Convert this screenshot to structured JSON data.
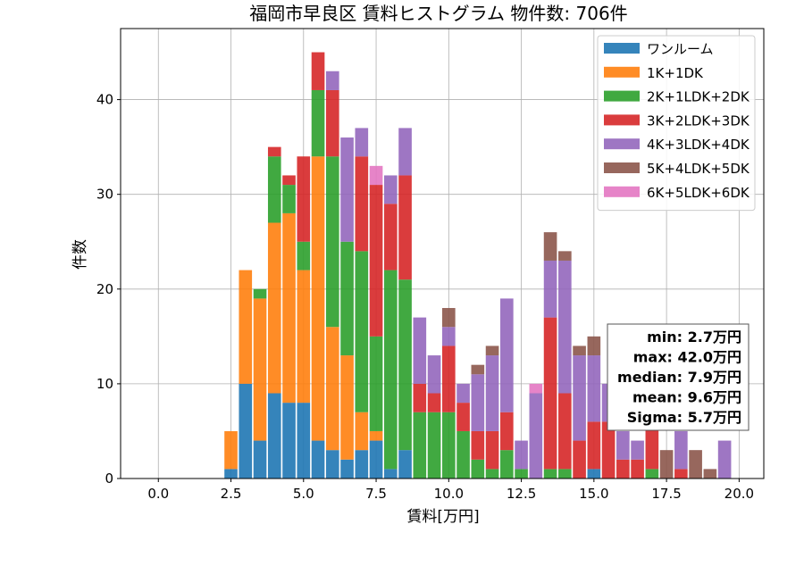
{
  "chart_data": {
    "type": "bar",
    "stacked": true,
    "title": "福岡市早良区 賃料ヒストグラム 物件数: 706件",
    "xlabel": "賃料[万円]",
    "ylabel": "件数",
    "xlim": [
      -1.3,
      20.85
    ],
    "ylim": [
      0,
      47.5
    ],
    "grid": true,
    "legend_position": "top-right",
    "bin_width": 0.5,
    "x": [
      2.5,
      3.0,
      3.5,
      4.0,
      4.5,
      5.0,
      5.5,
      6.0,
      6.5,
      7.0,
      7.5,
      8.0,
      8.5,
      9.0,
      9.5,
      10.0,
      10.5,
      11.0,
      11.5,
      12.0,
      12.5,
      13.0,
      13.5,
      14.0,
      14.5,
      15.0,
      15.5,
      16.0,
      16.5,
      17.0,
      17.5,
      18.0,
      18.5,
      19.0,
      19.5
    ],
    "xticks": [
      0.0,
      2.5,
      5.0,
      7.5,
      10.0,
      12.5,
      15.0,
      17.5,
      20.0
    ],
    "xtick_labels": [
      "0.0",
      "2.5",
      "5.0",
      "7.5",
      "10.0",
      "12.5",
      "15.0",
      "17.5",
      "20.0"
    ],
    "yticks": [
      0,
      10,
      20,
      30,
      40
    ],
    "ytick_labels": [
      "0",
      "10",
      "20",
      "30",
      "40"
    ],
    "series": [
      {
        "name": "ワンルーム",
        "color": "#1f77b4",
        "values": [
          1,
          10,
          4,
          9,
          8,
          8,
          4,
          3,
          2,
          3,
          4,
          1,
          3,
          0,
          0,
          0,
          0,
          0,
          0,
          0,
          0,
          0,
          0,
          0,
          0,
          1,
          0,
          0,
          0,
          0,
          0,
          0,
          0,
          0,
          0
        ]
      },
      {
        "name": "1K+1DK",
        "color": "#ff7f0e",
        "values": [
          4,
          12,
          15,
          18,
          20,
          14,
          30,
          13,
          11,
          4,
          1,
          0,
          0,
          0,
          0,
          0,
          0,
          0,
          0,
          0,
          0,
          0,
          0,
          0,
          0,
          0,
          0,
          0,
          0,
          0,
          0,
          0,
          0,
          0,
          0
        ]
      },
      {
        "name": "2K+1LDK+2DK",
        "color": "#2ca02c",
        "values": [
          0,
          0,
          1,
          7,
          3,
          3,
          7,
          18,
          12,
          17,
          10,
          21,
          18,
          7,
          7,
          7,
          5,
          2,
          1,
          3,
          1,
          0,
          1,
          1,
          0,
          0,
          0,
          0,
          0,
          1,
          0,
          0,
          0,
          0,
          0
        ]
      },
      {
        "name": "3K+2LDK+3DK",
        "color": "#d62728",
        "values": [
          0,
          0,
          0,
          1,
          1,
          9,
          4,
          7,
          0,
          10,
          16,
          7,
          11,
          3,
          2,
          7,
          3,
          3,
          4,
          4,
          0,
          0,
          16,
          8,
          4,
          5,
          6,
          2,
          2,
          5,
          0,
          1,
          0,
          0,
          0
        ]
      },
      {
        "name": "4K+3LDK+4DK",
        "color": "#9467bd",
        "values": [
          0,
          0,
          0,
          0,
          0,
          0,
          0,
          2,
          11,
          3,
          0,
          3,
          5,
          7,
          4,
          2,
          2,
          6,
          8,
          12,
          3,
          9,
          6,
          14,
          9,
          7,
          4,
          3,
          2,
          0,
          0,
          4,
          0,
          0,
          4
        ]
      },
      {
        "name": "5K+4LDK+5DK",
        "color": "#8c564b",
        "values": [
          0,
          0,
          0,
          0,
          0,
          0,
          0,
          0,
          0,
          0,
          0,
          0,
          0,
          0,
          0,
          2,
          0,
          1,
          1,
          0,
          0,
          0,
          3,
          1,
          1,
          2,
          0,
          0,
          0,
          0,
          3,
          0,
          3,
          1,
          0
        ]
      },
      {
        "name": "6K+5LDK+6DK",
        "color": "#e377c2",
        "values": [
          0,
          0,
          0,
          0,
          0,
          0,
          0,
          0,
          0,
          0,
          2,
          0,
          0,
          0,
          0,
          0,
          0,
          0,
          0,
          0,
          0,
          1,
          0,
          0,
          0,
          0,
          0,
          0,
          0,
          0,
          0,
          0,
          0,
          0,
          0
        ]
      }
    ],
    "annotations": [
      "min: 2.7万円",
      "max: 42.0万円",
      "median: 7.9万円",
      "mean: 9.6万円",
      "Sigma: 5.7万円"
    ]
  }
}
